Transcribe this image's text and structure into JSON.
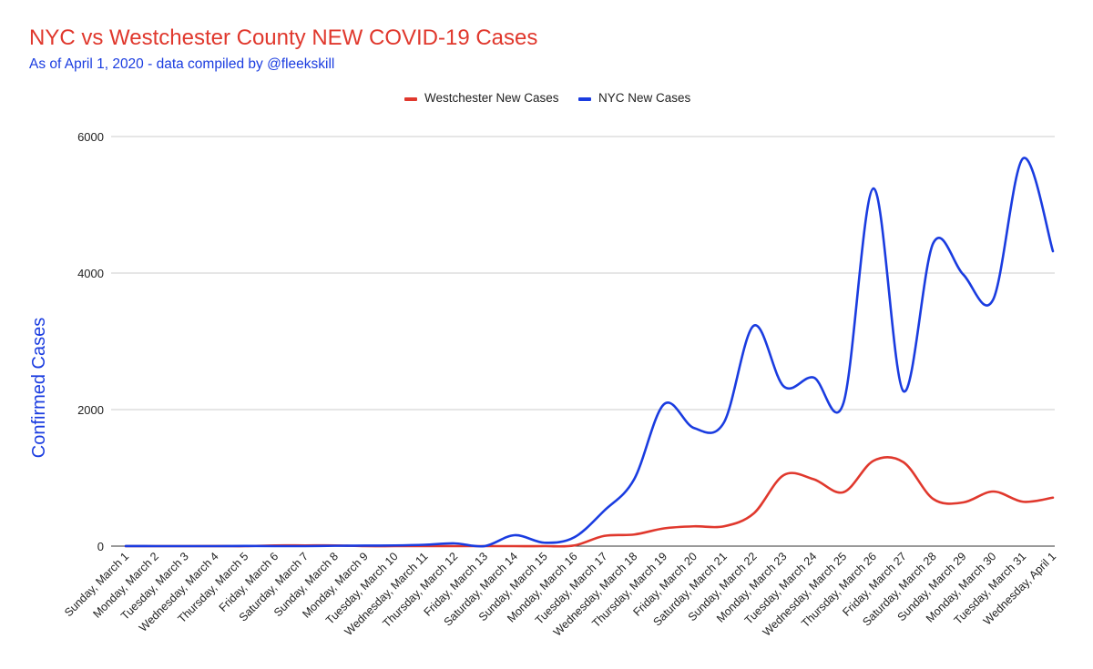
{
  "chart_data": {
    "type": "line",
    "title": "NYC vs Westchester County NEW COVID-19 Cases",
    "subtitle": "As of April 1, 2020 - data compiled by @fleekskill",
    "ylabel": "Confirmed Cases",
    "xlabel": "",
    "ylim": [
      0,
      6000
    ],
    "yticks": [
      0,
      2000,
      4000,
      6000
    ],
    "grid": true,
    "legend_position": "top-center",
    "categories": [
      "Sunday, March 1",
      "Monday, March 2",
      "Tuesday, March 3",
      "Wednesday, March 4",
      "Thursday, March 5",
      "Friday, March 6",
      "Saturday, March 7",
      "Sunday, March 8",
      "Monday, March 9",
      "Tuesday, March 10",
      "Wednesday, March 11",
      "Thursday, March 12",
      "Friday, March 13",
      "Saturday, March 14",
      "Sunday, March 15",
      "Monday, March 16",
      "Tuesday, March 17",
      "Wednesday, March 18",
      "Thursday, March 19",
      "Friday, March 20",
      "Saturday, March 21",
      "Sunday, March 22",
      "Monday, March 23",
      "Tuesday, March 24",
      "Wednesday, March 25",
      "Thursday, March 26",
      "Friday, March 27",
      "Saturday, March 28",
      "Sunday, March 29",
      "Monday, March 30",
      "Tuesday, March 31",
      "Wednesday, April 1"
    ],
    "series": [
      {
        "name": "Westchester New Cases",
        "color": "#e0382d",
        "values": [
          0,
          0,
          0,
          1,
          0,
          10,
          10,
          10,
          0,
          0,
          0,
          0,
          0,
          0,
          0,
          10,
          150,
          170,
          260,
          290,
          290,
          480,
          1040,
          980,
          790,
          1250,
          1230,
          690,
          640,
          800,
          650,
          710
        ]
      },
      {
        "name": "NYC New Cases",
        "color": "#1a3ce0",
        "values": [
          1,
          0,
          0,
          0,
          2,
          0,
          0,
          5,
          7,
          10,
          20,
          40,
          0,
          160,
          50,
          130,
          520,
          980,
          2080,
          1730,
          1810,
          3230,
          2340,
          2470,
          2100,
          5240,
          2270,
          4440,
          3980,
          3610,
          5680,
          4320
        ]
      }
    ]
  }
}
